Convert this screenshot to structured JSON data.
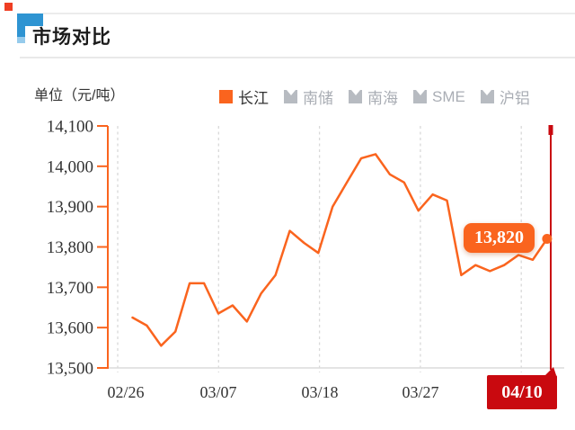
{
  "page": {
    "title": "市场对比",
    "unit_label": "单位（元/吨）"
  },
  "legend": {
    "items": [
      {
        "label": "长江",
        "selected": true
      },
      {
        "label": "南储",
        "selected": false
      },
      {
        "label": "南海",
        "selected": false
      },
      {
        "label": "SME",
        "selected": false
      },
      {
        "label": "沪铝",
        "selected": false
      }
    ]
  },
  "tooltip": {
    "value": "13,820"
  },
  "axis_pointer": {
    "date_label": "04/10"
  },
  "colors": {
    "accent_orange": "#fa641e",
    "pointer_red": "#c9090f",
    "marker_red": "#ef3e23",
    "header_blue": "#2e94d2",
    "header_blue_light": "#96cbec",
    "grid_gray": "#d9d9d9",
    "axis_gray": "#dcdcdc",
    "text_dark": "#333333",
    "text_muted": "#a9adb4"
  },
  "chart_data": {
    "type": "line",
    "title": "市场对比",
    "unit": "单位（元/吨）",
    "legend": [
      "长江",
      "南储",
      "南海",
      "SME",
      "沪铝"
    ],
    "active_series": "长江",
    "x": [
      "02/27",
      "02/28",
      "03/01",
      "03/04",
      "03/05",
      "03/06",
      "03/07",
      "03/08",
      "03/11",
      "03/12",
      "03/13",
      "03/14",
      "03/15",
      "03/18",
      "03/19",
      "03/20",
      "03/21",
      "03/22",
      "03/25",
      "03/26",
      "03/27",
      "03/28",
      "03/29",
      "04/01",
      "04/02",
      "04/03",
      "04/04",
      "04/08",
      "04/09",
      "04/10"
    ],
    "series": [
      {
        "name": "长江",
        "values": [
          13625,
          13605,
          13555,
          13590,
          13710,
          13710,
          13635,
          13655,
          13615,
          13685,
          13730,
          13840,
          13810,
          13785,
          13900,
          13960,
          14020,
          14030,
          13980,
          13960,
          13890,
          13930,
          13915,
          13730,
          13755,
          13740,
          13755,
          13780,
          13768,
          13820
        ]
      }
    ],
    "y_ticks": [
      14100,
      14000,
      13900,
      13800,
      13700,
      13600,
      13500
    ],
    "y_tick_labels": [
      "14,100",
      "14,000",
      "13,900",
      "13,800",
      "13,700",
      "13,600",
      "13,500"
    ],
    "x_tick_labels": [
      "02/26",
      "03/07",
      "03/18",
      "03/27"
    ],
    "pointer": {
      "date": "04/10",
      "value": 13820,
      "value_label": "13,820"
    },
    "ylim": [
      13500,
      14100
    ],
    "grid": "vertical-dashed"
  }
}
